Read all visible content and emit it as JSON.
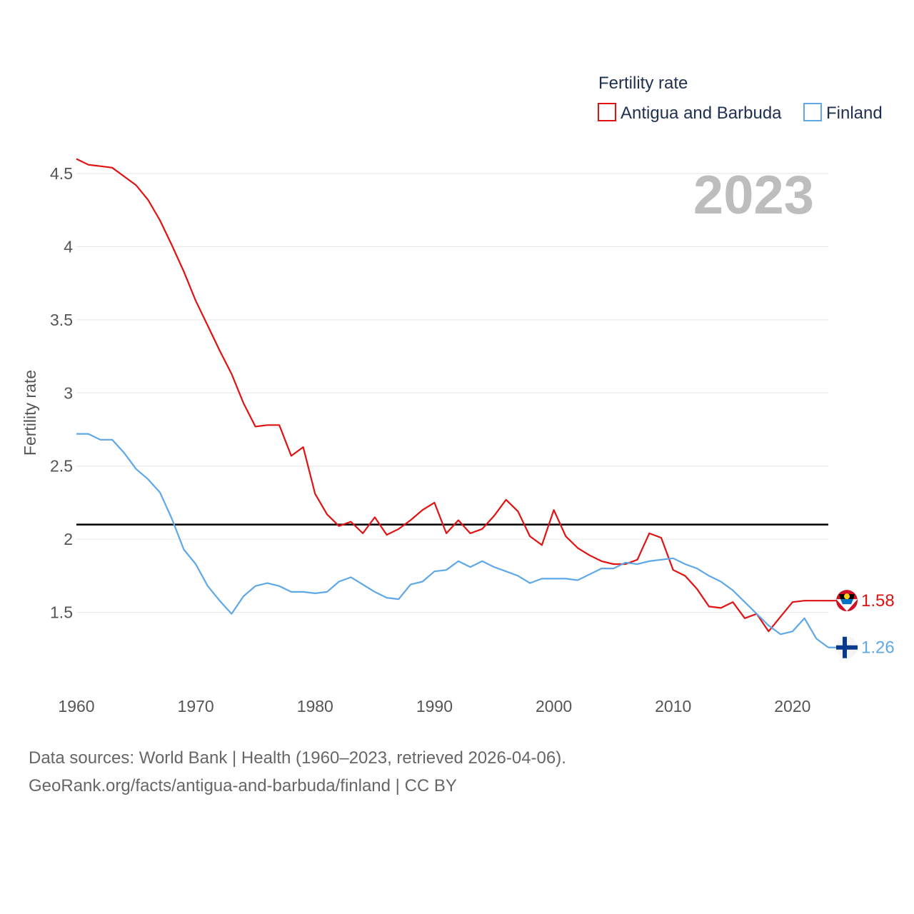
{
  "chart_data": {
    "type": "line",
    "legend_title": "Fertility rate",
    "ylabel": "Fertility rate",
    "year_label": "2023",
    "xlim": [
      1960,
      2023
    ],
    "ylim": [
      1.0,
      4.7
    ],
    "xticks": [
      1960,
      1970,
      1980,
      1990,
      2000,
      2010,
      2020
    ],
    "yticks": [
      1.5,
      2,
      2.5,
      3,
      3.5,
      4,
      4.5
    ],
    "ytick_labels": [
      "1.5",
      "2",
      "2.5",
      "3",
      "3.5",
      "4",
      "4.5"
    ],
    "reference_line": {
      "value": 2.1,
      "color": "#000000"
    },
    "x": [
      1960,
      1961,
      1962,
      1963,
      1964,
      1965,
      1966,
      1967,
      1968,
      1969,
      1970,
      1971,
      1972,
      1973,
      1974,
      1975,
      1976,
      1977,
      1978,
      1979,
      1980,
      1981,
      1982,
      1983,
      1984,
      1985,
      1986,
      1987,
      1988,
      1989,
      1990,
      1991,
      1992,
      1993,
      1994,
      1995,
      1996,
      1997,
      1998,
      1999,
      2000,
      2001,
      2002,
      2003,
      2004,
      2005,
      2006,
      2007,
      2008,
      2009,
      2010,
      2011,
      2012,
      2013,
      2014,
      2015,
      2016,
      2017,
      2018,
      2019,
      2020,
      2021,
      2022,
      2023
    ],
    "series": [
      {
        "name": "Antigua and Barbuda",
        "color": "#e01212",
        "end_label": "1.58",
        "values": [
          4.6,
          4.56,
          4.55,
          4.54,
          4.48,
          4.42,
          4.32,
          4.18,
          4.01,
          3.83,
          3.63,
          3.46,
          3.29,
          3.13,
          2.93,
          2.77,
          2.78,
          2.78,
          2.57,
          2.63,
          2.31,
          2.17,
          2.09,
          2.12,
          2.04,
          2.15,
          2.03,
          2.07,
          2.13,
          2.2,
          2.25,
          2.04,
          2.13,
          2.04,
          2.07,
          2.16,
          2.27,
          2.19,
          2.02,
          1.96,
          2.2,
          2.02,
          1.94,
          1.89,
          1.85,
          1.83,
          1.83,
          1.86,
          2.04,
          2.01,
          1.79,
          1.75,
          1.66,
          1.54,
          1.53,
          1.57,
          1.46,
          1.49,
          1.37,
          1.47,
          1.57,
          1.58,
          1.58,
          1.58
        ]
      },
      {
        "name": "Finland",
        "color": "#5ea8e8",
        "end_label": "1.26",
        "values": [
          2.72,
          2.72,
          2.68,
          2.68,
          2.59,
          2.48,
          2.41,
          2.32,
          2.14,
          1.93,
          1.83,
          1.68,
          1.58,
          1.49,
          1.61,
          1.68,
          1.7,
          1.68,
          1.64,
          1.64,
          1.63,
          1.64,
          1.71,
          1.74,
          1.69,
          1.64,
          1.6,
          1.59,
          1.69,
          1.71,
          1.78,
          1.79,
          1.85,
          1.81,
          1.85,
          1.81,
          1.78,
          1.75,
          1.7,
          1.73,
          1.73,
          1.73,
          1.72,
          1.76,
          1.8,
          1.8,
          1.84,
          1.83,
          1.85,
          1.86,
          1.87,
          1.83,
          1.8,
          1.75,
          1.71,
          1.65,
          1.57,
          1.49,
          1.41,
          1.35,
          1.37,
          1.46,
          1.32,
          1.26
        ]
      }
    ]
  },
  "source": {
    "line1": "Data sources: World Bank | Health (1960–2023, retrieved 2026-04-06).",
    "line2": "GeoRank.org/facts/antigua-and-barbuda/finland | CC BY"
  }
}
